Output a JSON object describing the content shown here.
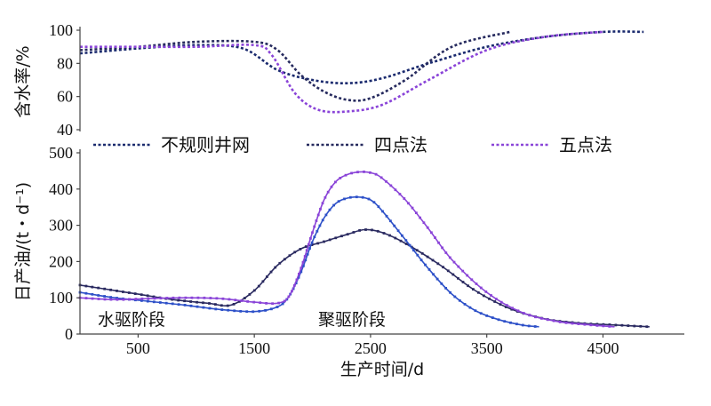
{
  "colors": {
    "irregular": "#1a2a6e",
    "four_point": "#262a5e",
    "five_point": "#8a44d8",
    "irregular_oil": "#2a2a60",
    "four_point_oil": "#2d50c8",
    "five_point_oil": "#8a44d8"
  },
  "legend": [
    {
      "key": "irregular",
      "label": "不规则井网"
    },
    {
      "key": "four_point",
      "label": "四点法"
    },
    {
      "key": "five_point",
      "label": "五点法"
    }
  ],
  "x_axis": {
    "label": "生产时间/d",
    "ticks": [
      "500",
      "1500",
      "2500",
      "3500",
      "4500"
    ]
  },
  "annotations": {
    "water": "水驱阶段",
    "polymer": "聚驱阶段"
  },
  "chart_data": [
    {
      "type": "line",
      "ylabel": "含水率/%",
      "xlabel": "",
      "xlim": [
        0,
        5200
      ],
      "ylim": [
        40,
        100
      ],
      "yticks": [
        "40",
        "60",
        "80",
        "100"
      ],
      "series": [
        {
          "name": "不规则井网",
          "color_key": "irregular",
          "x": [
            0,
            500,
            1000,
            1400,
            1700,
            2000,
            2300,
            2600,
            3000,
            3500,
            4000,
            4500,
            4850
          ],
          "y": [
            86,
            89,
            91,
            89,
            76,
            70,
            68,
            71,
            80,
            90,
            96,
            99,
            99
          ]
        },
        {
          "name": "四点法",
          "color_key": "four_point",
          "x": [
            0,
            500,
            1000,
            1500,
            1700,
            1900,
            2100,
            2300,
            2500,
            2800,
            3200,
            3700
          ],
          "y": [
            88,
            90,
            93,
            93,
            88,
            73,
            63,
            58,
            59,
            70,
            90,
            99
          ]
        },
        {
          "name": "五点法",
          "color_key": "five_point",
          "x": [
            0,
            500,
            1000,
            1500,
            1650,
            1850,
            2050,
            2300,
            2600,
            3000,
            3500,
            4000,
            4500
          ],
          "y": [
            90,
            90,
            90,
            91,
            85,
            62,
            52,
            51,
            55,
            70,
            88,
            96,
            99
          ]
        }
      ]
    },
    {
      "type": "line",
      "ylabel": "日产油/(t・d⁻¹)",
      "xlabel": "生产时间/d",
      "xlim": [
        0,
        5200
      ],
      "ylim": [
        0,
        500
      ],
      "yticks": [
        "0",
        "100",
        "200",
        "300",
        "400",
        "500"
      ],
      "series": [
        {
          "name": "不规则井网",
          "color_key": "irregular_oil",
          "x": [
            0,
            200,
            500,
            800,
            1100,
            1300,
            1500,
            1700,
            1900,
            2100,
            2300,
            2450,
            2600,
            2800,
            3100,
            3400,
            3700,
            4000,
            4300,
            4600,
            4900
          ],
          "y": [
            135,
            125,
            110,
            95,
            85,
            80,
            120,
            190,
            235,
            255,
            275,
            288,
            280,
            250,
            190,
            120,
            70,
            42,
            30,
            25,
            20
          ]
        },
        {
          "name": "四点法",
          "color_key": "four_point_oil",
          "x": [
            0,
            300,
            600,
            900,
            1200,
            1500,
            1700,
            1800,
            1900,
            2000,
            2100,
            2200,
            2300,
            2400,
            2500,
            2600,
            2800,
            3000,
            3200,
            3400,
            3600,
            3800,
            3950
          ],
          "y": [
            115,
            100,
            90,
            80,
            68,
            62,
            75,
            105,
            170,
            255,
            320,
            360,
            375,
            378,
            370,
            340,
            260,
            180,
            110,
            65,
            40,
            25,
            20
          ]
        },
        {
          "name": "五点法",
          "color_key": "five_point_oil",
          "x": [
            0,
            300,
            600,
            900,
            1200,
            1500,
            1700,
            1800,
            1900,
            2000,
            2100,
            2200,
            2300,
            2400,
            2500,
            2600,
            2800,
            3000,
            3200,
            3500,
            3800,
            4100,
            4400,
            4600
          ],
          "y": [
            100,
            95,
            98,
            100,
            98,
            88,
            85,
            105,
            180,
            280,
            370,
            420,
            440,
            447,
            445,
            430,
            370,
            290,
            205,
            115,
            60,
            35,
            25,
            20
          ]
        }
      ]
    }
  ]
}
